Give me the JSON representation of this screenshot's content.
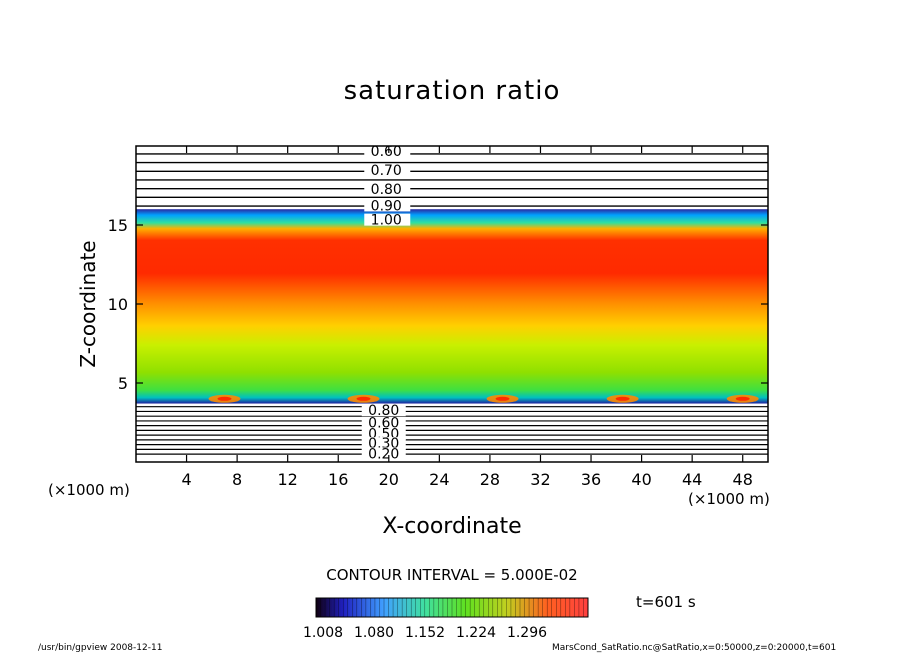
{
  "chart_data": {
    "type": "heatmap",
    "title": "saturation ratio",
    "xlabel": "X-coordinate",
    "ylabel": "Z-coordinate",
    "x_unit": "(×1000 m)",
    "y_unit": "(×1000 m)",
    "xlim": [
      0,
      50
    ],
    "ylim": [
      0,
      20
    ],
    "x_ticks": [
      4,
      8,
      12,
      16,
      20,
      24,
      28,
      32,
      36,
      40,
      44,
      48
    ],
    "y_ticks": [
      5,
      10,
      15
    ],
    "contour_labels_upper": [
      "0.60",
      "0.70",
      "0.80",
      "0.90",
      "1.00"
    ],
    "contour_labels_lower": [
      "0.80",
      "0.60",
      "0.50",
      "0.30",
      "0.20"
    ],
    "contour_interval_text": "CONTOUR INTERVAL = 5.000E-02",
    "colorbar_ticks": [
      "1.008",
      "1.080",
      "1.152",
      "1.224",
      "1.296"
    ],
    "colorbar_range": [
      1.008,
      1.296
    ],
    "time_label": "t=601 s",
    "colors": {
      "low": "#1a1a8c",
      "mid": "#7fe000",
      "high": "#ff2000"
    }
  },
  "footer": {
    "left": "/usr/bin/gpview  2008-12-11",
    "right": "MarsCond_SatRatio.nc@SatRatio,x=0:50000,z=0:20000,t=601"
  }
}
